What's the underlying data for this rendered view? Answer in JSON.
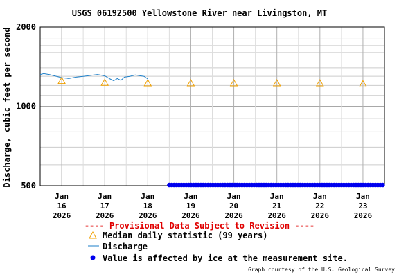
{
  "chart_data": {
    "type": "line",
    "title": "USGS 06192500 Yellowstone River near Livingston, MT",
    "ylabel": "Discharge, cubic feet per second",
    "xlabel": "",
    "y_scale": "log",
    "ylim": [
      500,
      2000
    ],
    "y_ticks": [
      "500",
      "1000",
      "2000"
    ],
    "x_tick_labels": [
      {
        "date": "2026-01-16",
        "lines": [
          "Jan",
          "16",
          "2026"
        ]
      },
      {
        "date": "2026-01-17",
        "lines": [
          "Jan",
          "17",
          "2026"
        ]
      },
      {
        "date": "2026-01-18",
        "lines": [
          "Jan",
          "18",
          "2026"
        ]
      },
      {
        "date": "2026-01-19",
        "lines": [
          "Jan",
          "19",
          "2026"
        ]
      },
      {
        "date": "2026-01-20",
        "lines": [
          "Jan",
          "20",
          "2026"
        ]
      },
      {
        "date": "2026-01-21",
        "lines": [
          "Jan",
          "21",
          "2026"
        ]
      },
      {
        "date": "2026-01-22",
        "lines": [
          "Jan",
          "22",
          "2026"
        ]
      },
      {
        "date": "2026-01-23",
        "lines": [
          "Jan",
          "23",
          "2026"
        ]
      }
    ],
    "series": [
      {
        "name": "Discharge",
        "color": "#1e7fc8",
        "points": [
          [
            "2026-01-15 12:00",
            1320
          ],
          [
            "2026-01-15 14:00",
            1330
          ],
          [
            "2026-01-15 17:00",
            1320
          ],
          [
            "2026-01-15 20:00",
            1305
          ],
          [
            "2026-01-16 00:00",
            1285
          ],
          [
            "2026-01-16 04:00",
            1275
          ],
          [
            "2026-01-16 08:00",
            1290
          ],
          [
            "2026-01-16 12:00",
            1300
          ],
          [
            "2026-01-16 16:00",
            1310
          ],
          [
            "2026-01-16 20:00",
            1320
          ],
          [
            "2026-01-17 00:00",
            1305
          ],
          [
            "2026-01-17 03:00",
            1270
          ],
          [
            "2026-01-17 05:00",
            1250
          ],
          [
            "2026-01-17 07:00",
            1275
          ],
          [
            "2026-01-17 09:00",
            1255
          ],
          [
            "2026-01-17 11:00",
            1290
          ],
          [
            "2026-01-17 14:00",
            1300
          ],
          [
            "2026-01-17 17:00",
            1315
          ],
          [
            "2026-01-17 20:00",
            1305
          ],
          [
            "2026-01-17 22:00",
            1300
          ],
          [
            "2026-01-18 00:00",
            1270
          ]
        ]
      },
      {
        "name": "Median daily statistic (99 years)",
        "color": "#f0a000",
        "points": [
          [
            "2026-01-16",
            1250
          ],
          [
            "2026-01-17",
            1230
          ],
          [
            "2026-01-18",
            1225
          ],
          [
            "2026-01-19",
            1225
          ],
          [
            "2026-01-20",
            1225
          ],
          [
            "2026-01-21",
            1225
          ],
          [
            "2026-01-22",
            1225
          ],
          [
            "2026-01-23",
            1215
          ]
        ]
      },
      {
        "name": "Value is affected by ice at the measurement site.",
        "color": "#0000ee",
        "start": "2026-01-18 12:00",
        "end": "2026-01-23 12:00",
        "value": 500
      }
    ],
    "grid": true,
    "legend_position": "bottom"
  },
  "notice": "---- Provisional Data Subject to Revision ----",
  "legend": {
    "median_label": "Median daily statistic (99 years)",
    "discharge_label": "Discharge",
    "ice_label": "Value is affected by ice at the measurement site."
  },
  "credit": "Graph courtesy of the U.S. Geological Survey"
}
